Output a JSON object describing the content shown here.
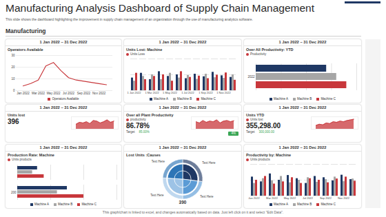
{
  "page": {
    "title": "Manufacturing Analysis Dashboard of Supply Chain Management",
    "subtitle": "This slide shows the dashboard highlighting the improvement in supply chain management of an organization through the use of manufacturing analytics software.",
    "section": "Manufacturing",
    "footer": "This graph/chart is linked to excel, and changes automatically based on data. Just left click on it and select \"Edit Data\"."
  },
  "chart_data": [
    {
      "type": "line",
      "subtitle": "1 Jan 2022 – 31 Dec 2022",
      "title": "Operators Available",
      "categories": [
        "Jan 2022",
        null,
        "Mar 2022",
        null,
        "May 2022",
        null,
        "Jul 2022",
        null,
        "Sep 2022",
        null,
        "Nov 2022",
        null
      ],
      "series": [
        {
          "name": "Operators Available",
          "color": "#c8373b",
          "values": [
            4,
            6,
            9,
            21,
            24,
            17,
            11,
            9,
            8,
            7,
            6,
            5
          ]
        }
      ],
      "ylim": [
        0,
        30
      ],
      "yticks": [
        0,
        10,
        20,
        30
      ],
      "grid": true,
      "legend": "bottom"
    },
    {
      "type": "bar",
      "subtitle": "1 Jan 2022 – 31 Dec 2022",
      "title": "Units Lost: Machine",
      "annotation": "Units Loss",
      "categories": [
        "1 Jan 2022",
        null,
        "1 Mar 2022",
        null,
        "1 May 2022",
        null,
        "1 Jul 2022",
        null,
        "1 Sep 2022",
        null,
        "1 Nov 2022",
        null
      ],
      "series": [
        {
          "name": "Machine A",
          "color": "#1f3864",
          "values": [
            40,
            55,
            35,
            60,
            45,
            50,
            38,
            52,
            44,
            58,
            47,
            42
          ]
        },
        {
          "name": "Machine B",
          "color": "#a6a6a6",
          "values": [
            30,
            45,
            50,
            35,
            55,
            40,
            48,
            36,
            52,
            41,
            39,
            50
          ]
        },
        {
          "name": "Machine C",
          "color": "#c8373b",
          "values": [
            55,
            35,
            45,
            50,
            30,
            60,
            42,
            46,
            38,
            49,
            56,
            33
          ]
        }
      ],
      "ylim": [
        0,
        100
      ],
      "yticks": [
        0,
        50,
        100
      ],
      "grid": true,
      "tick_labels": "x",
      "legend": "bottom"
    },
    {
      "type": "bar",
      "orientation": "horizontal",
      "subtitle": "1 Jan 2022 – 31 Dec 2022",
      "title": "Over All Productivity: YTD",
      "annotation": "Productivity",
      "categories": [
        "2022"
      ],
      "series": [
        {
          "name": "Machine A",
          "color": "#1f3864",
          "values": [
            70
          ]
        },
        {
          "name": "Machine B",
          "color": "#a6a6a6",
          "values": [
            80
          ]
        },
        {
          "name": "Machine C",
          "color": "#c8373b",
          "values": [
            90
          ]
        }
      ],
      "xlim": [
        0,
        100
      ],
      "xticks": [
        0,
        25,
        50,
        75,
        100
      ],
      "grid": true,
      "tick_labels": "y",
      "legend": "bottom"
    },
    {
      "type": "area",
      "subtitle": "1 Jan 2022 – 31 Dec 2022",
      "title": "Units lost",
      "kpi": "396",
      "values": [
        40,
        55,
        50,
        60,
        45,
        70,
        65,
        50,
        60,
        75,
        55,
        65
      ],
      "color": "#c8373b",
      "ylim": [
        0,
        100
      ],
      "tick_labels": false
    },
    {
      "type": "area",
      "subtitle": "1 Jan 2022 – 31 Dec 2022",
      "title": "Over all Plant Productivity",
      "annotation": "productivity",
      "kpi": "86.78%",
      "target_label": "Target",
      "target": "85.00%",
      "badge": "4%",
      "values": [
        60,
        50,
        70,
        55,
        65,
        60,
        75,
        50,
        65,
        70,
        60,
        68
      ],
      "color": "#c8373b",
      "ylim": [
        0,
        100
      ],
      "tick_labels": false
    },
    {
      "type": "area",
      "subtitle": "1 Jan 2022 – 31 Dec 2022",
      "title": "Units YTD",
      "annotation": "Units lost",
      "kpi": "355,298.00",
      "target_label": "Target",
      "target": "300,000.00",
      "values": [
        30,
        40,
        35,
        50,
        45,
        60,
        55,
        65,
        60,
        70,
        75,
        80
      ],
      "color": "#c8373b",
      "ylim": [
        0,
        100
      ],
      "tick_labels": false
    },
    {
      "type": "bar",
      "orientation": "horizontal",
      "subtitle": "1 Jan 2022 – 31 Dec 2022",
      "title": "Production Rate: Machine",
      "annotation": "Units products",
      "categories": [
        null,
        "200"
      ],
      "series": [
        {
          "name": "Machine A",
          "color": "#1f3864",
          "values": [
            60,
            150
          ]
        },
        {
          "name": "Machine B",
          "color": "#a6a6a6",
          "values": [
            45,
            120
          ]
        },
        {
          "name": "Machine C",
          "color": "#c8373b",
          "values": [
            80,
            200
          ]
        }
      ],
      "xlim": [
        0,
        300
      ],
      "xticks": [
        0,
        100,
        200,
        300
      ],
      "grid": true,
      "tick_labels": "y",
      "legend": "bottom"
    },
    {
      "type": "pie",
      "subtitle": "1 Jan 2022 – 31 Dec 2022",
      "title": "Lost Units :Causes",
      "categories": [
        "Text Here",
        "Text Here",
        "Text Here",
        "Text Here"
      ],
      "values": [
        27,
        23,
        26,
        24
      ],
      "colors": [
        "#1f3864",
        "#5b9bd5",
        "#9dc3e6",
        "#2e75b6"
      ],
      "total": 390
    },
    {
      "type": "bar",
      "subtitle": "1 Jan 2022 – 31 Dec 2022",
      "title": "Productivity by: Machine",
      "annotation": "Units products",
      "categories": [
        "Jan 2022",
        null,
        "Mar 2022",
        null,
        "May 2022",
        null,
        "Jul 2022",
        null,
        "Sep 2022",
        null,
        "Nov 2022",
        null
      ],
      "series": [
        {
          "name": "Machine A",
          "color": "#1f3864",
          "values": [
            60,
            45,
            70,
            50,
            65,
            55,
            40,
            62,
            58,
            48,
            66,
            52
          ]
        },
        {
          "name": "Machine B",
          "color": "#a6a6a6",
          "values": [
            40,
            55,
            48,
            62,
            42,
            50,
            58,
            44,
            52,
            60,
            46,
            54
          ]
        },
        {
          "name": "Machine C",
          "color": "#c8373b",
          "values": [
            50,
            62,
            38,
            45,
            58,
            40,
            55,
            50,
            42,
            54,
            60,
            47
          ]
        }
      ],
      "ylim": [
        0,
        100
      ],
      "yticks": [
        0,
        50,
        100
      ],
      "grid": true,
      "tick_labels": "x",
      "legend": "bottom"
    }
  ]
}
